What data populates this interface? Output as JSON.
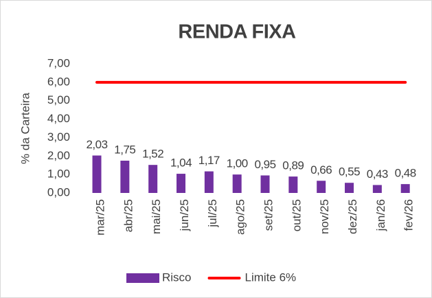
{
  "chart_data": {
    "type": "bar",
    "title": "RENDA FIXA",
    "y_label": "% da Carteira",
    "categories": [
      "mar/25",
      "abr/25",
      "mai/25",
      "jun/25",
      "jul/25",
      "ago/25",
      "set/25",
      "out/25",
      "nov/25",
      "dez/25",
      "jan/26",
      "fev/26"
    ],
    "series": [
      {
        "name": "Risco",
        "type": "bar",
        "color": "#7030a0",
        "values": [
          2.03,
          1.75,
          1.52,
          1.04,
          1.17,
          1.0,
          0.95,
          0.89,
          0.66,
          0.55,
          0.43,
          0.48
        ],
        "value_labels": [
          "2,03",
          "1,75",
          "1,52",
          "1,04",
          "1,17",
          "1,00",
          "0,95",
          "0,89",
          "0,66",
          "0,55",
          "0,43",
          "0,48"
        ]
      },
      {
        "name": "Limite 6%",
        "type": "line",
        "color": "#ff0000",
        "values": [
          6,
          6,
          6,
          6,
          6,
          6,
          6,
          6,
          6,
          6,
          6,
          6
        ]
      }
    ],
    "ylim": [
      0,
      7
    ],
    "yticks": [
      {
        "value": 0,
        "label": "0,00"
      },
      {
        "value": 1,
        "label": "1,00"
      },
      {
        "value": 2,
        "label": "2,00"
      },
      {
        "value": 3,
        "label": "3,00"
      },
      {
        "value": 4,
        "label": "4,00"
      },
      {
        "value": 5,
        "label": "5,00"
      },
      {
        "value": 6,
        "label": "6,00"
      },
      {
        "value": 7,
        "label": "7,00"
      }
    ],
    "grid": false,
    "legend": "bottom"
  }
}
